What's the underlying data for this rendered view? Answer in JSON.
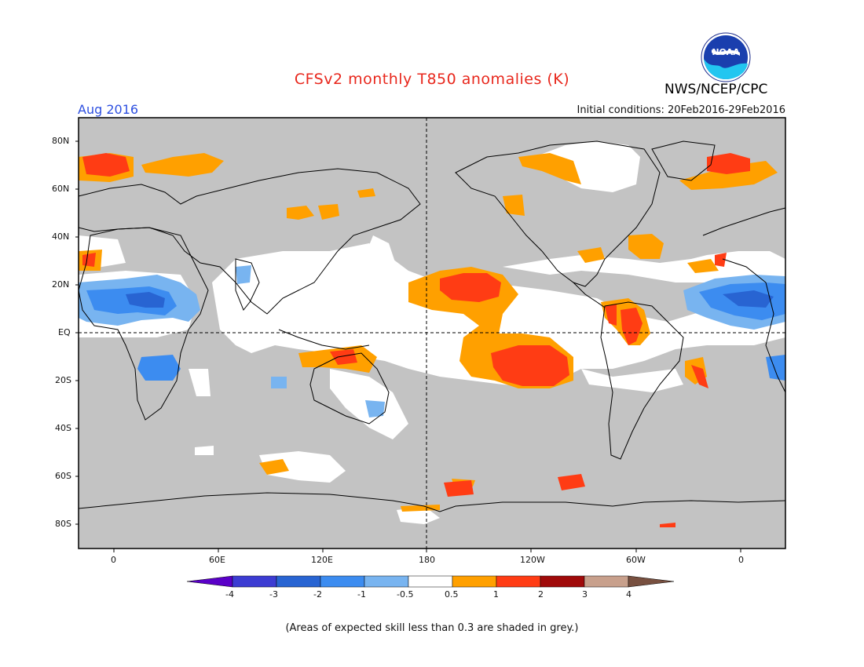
{
  "header": {
    "title": "CFSv2 monthly T850 anomalies (K)",
    "month": "Aug 2016",
    "initial_conditions": "Initial conditions: 20Feb2016-29Feb2016",
    "agency": "NWS/NCEP/CPC",
    "logo_text": "NOAA"
  },
  "map": {
    "lat_labels": [
      "80N",
      "60N",
      "40N",
      "20N",
      "EQ",
      "20S",
      "40S",
      "60S",
      "80S"
    ],
    "lon_labels": [
      "0",
      "60E",
      "120E",
      "180",
      "120W",
      "60W",
      "0"
    ]
  },
  "colorbar": {
    "labels": [
      "-4",
      "-3",
      "-2",
      "-1",
      "-0.5",
      "0.5",
      "1",
      "2",
      "3",
      "4"
    ],
    "colors": [
      "#5a00c8",
      "#3c3cd2",
      "#2864d2",
      "#3c8cf0",
      "#78b4f0",
      "#ffffff",
      "#ffa000",
      "#ff3c14",
      "#a00a0a",
      "#c8a08c",
      "#785040"
    ]
  },
  "colors": {
    "grey_mask": "#c3c3c3",
    "title": "#e8271c",
    "month": "#2d4fe0"
  },
  "footnote": "(Areas of expected skill less than 0.3 are shaded in grey.)"
}
